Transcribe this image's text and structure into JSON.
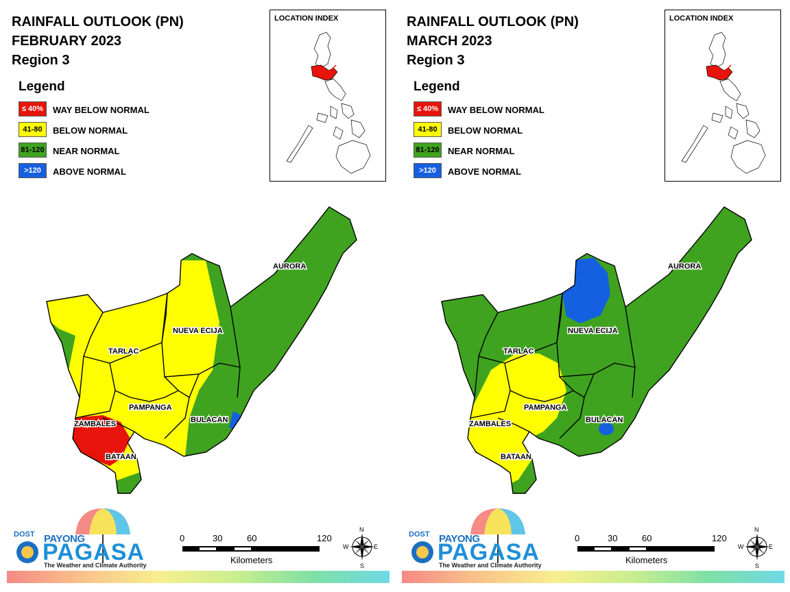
{
  "panels": [
    {
      "title": "RAINFALL OUTLOOK (PN)",
      "month": "FEBRUARY 2023",
      "region": "Region 3"
    },
    {
      "title": "RAINFALL OUTLOOK (PN)",
      "month": "MARCH 2023",
      "region": "Region 3"
    }
  ],
  "legend": {
    "title": "Legend",
    "items": [
      {
        "range": "≤ 40%",
        "label": "WAY BELOW NORMAL",
        "color": "#e8140c",
        "text_color": "#ffffff"
      },
      {
        "range": "41-80",
        "label": "BELOW NORMAL",
        "color": "#ffff00",
        "text_color": "#000000"
      },
      {
        "range": "81-120",
        "label": "NEAR NORMAL",
        "color": "#3fa320",
        "text_color": "#000000"
      },
      {
        "range": ">120",
        "label": "ABOVE NORMAL",
        "color": "#1560e0",
        "text_color": "#ffffff"
      }
    ]
  },
  "location_index": {
    "title": "LOCATION INDEX",
    "highlight_color": "#e8140c"
  },
  "provinces": {
    "aurora": "AURORA",
    "nueva_ecija": "NUEVA ECIJA",
    "tarlac": "TARLAC",
    "pampanga": "PAMPANGA",
    "bulacan": "BULACAN",
    "zambales": "ZAMBALES",
    "bataan": "BATAAN"
  },
  "logo": {
    "dost": "DOST",
    "payong": "PAYONG",
    "pagasa": "PAGASA",
    "tagline": "The Weather and Climate Authority"
  },
  "scale": {
    "ticks": [
      "0",
      "30",
      "60",
      "120"
    ],
    "unit": "Kilometers"
  },
  "compass": {
    "n": "N",
    "s": "S",
    "e": "E",
    "w": "W"
  }
}
